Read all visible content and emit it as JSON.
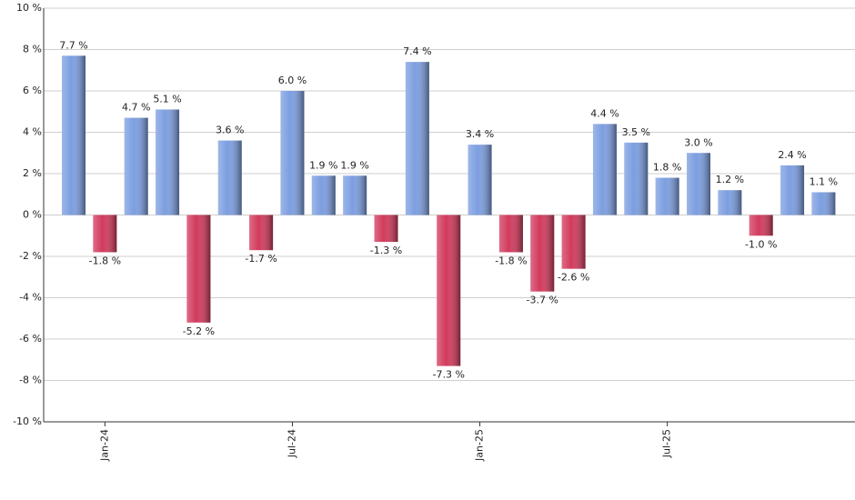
{
  "chart_data": {
    "type": "bar",
    "categories": [
      null,
      "Jan-24",
      null,
      null,
      null,
      null,
      null,
      "Jul-24",
      null,
      null,
      null,
      null,
      null,
      "Jan-25",
      null,
      null,
      null,
      null,
      null,
      "Jul-25",
      null,
      null,
      null,
      null,
      null
    ],
    "values": [
      7.7,
      -1.8,
      4.7,
      5.1,
      -5.2,
      3.6,
      -1.7,
      6.0,
      1.9,
      1.9,
      -1.3,
      7.4,
      -7.3,
      3.4,
      -1.8,
      -3.7,
      -2.6,
      4.4,
      3.5,
      1.8,
      3.0,
      1.2,
      -1.0,
      2.4,
      1.1
    ],
    "value_labels": [
      "7.7 %",
      "-1.8 %",
      "4.7 %",
      "5.1 %",
      "-5.2 %",
      "3.6 %",
      "-1.7 %",
      "6.0 %",
      "1.9 %",
      "1.9 %",
      "-1.3 %",
      "7.4 %",
      "-7.3 %",
      "3.4 %",
      "-1.8 %",
      "-3.7 %",
      "-2.6 %",
      "4.4 %",
      "3.5 %",
      "1.8 %",
      "3.0 %",
      "1.2 %",
      "-1.0 %",
      "2.4 %",
      "1.1 %"
    ],
    "color": "#7c9ee0",
    "negative_color": "#d23a5c",
    "ylim": [
      -10,
      10
    ],
    "yticks": [
      {
        "value": -10,
        "label": "-10 %"
      },
      {
        "value": -8,
        "label": "-8 %"
      },
      {
        "value": -6,
        "label": "-6 %"
      },
      {
        "value": -4,
        "label": "-4 %"
      },
      {
        "value": -2,
        "label": "-2 %"
      },
      {
        "value": 0,
        "label": "0 %"
      },
      {
        "value": 2,
        "label": "2 %"
      },
      {
        "value": 4,
        "label": "4 %"
      },
      {
        "value": 6,
        "label": "6 %"
      },
      {
        "value": 8,
        "label": "8 %"
      },
      {
        "value": 10,
        "label": "10 %"
      }
    ],
    "grid": true
  }
}
